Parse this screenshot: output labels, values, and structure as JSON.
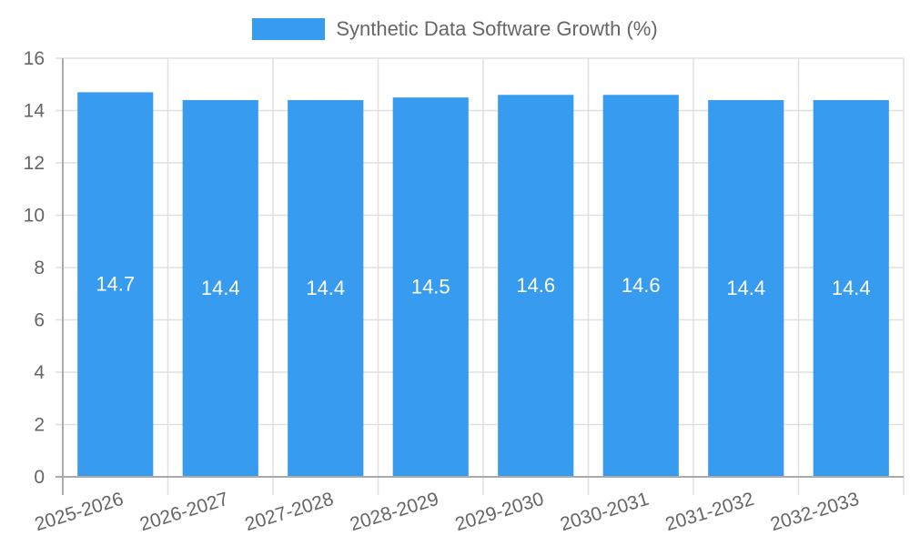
{
  "chart_data": {
    "type": "bar",
    "title": "",
    "legend": [
      {
        "label": "Synthetic Data Software Growth (%)",
        "color": "#379cf0"
      }
    ],
    "legend_position": "top",
    "categories": [
      "2025-2026",
      "2026-2027",
      "2027-2028",
      "2028-2029",
      "2029-2030",
      "2030-2031",
      "2031-2032",
      "2032-2033"
    ],
    "series": [
      {
        "name": "Synthetic Data Software Growth (%)",
        "values": [
          14.7,
          14.4,
          14.4,
          14.5,
          14.6,
          14.6,
          14.4,
          14.4
        ],
        "color": "#379cf0"
      }
    ],
    "data_labels": [
      "14.7",
      "14.4",
      "14.4",
      "14.5",
      "14.6",
      "14.6",
      "14.4",
      "14.4"
    ],
    "xlabel": "",
    "ylabel": "",
    "ylim": [
      0,
      16
    ],
    "yticks": [
      0,
      2,
      4,
      6,
      8,
      10,
      12,
      14,
      16
    ],
    "grid": true
  },
  "legend": {
    "label": "Synthetic Data Software Growth (%)"
  }
}
